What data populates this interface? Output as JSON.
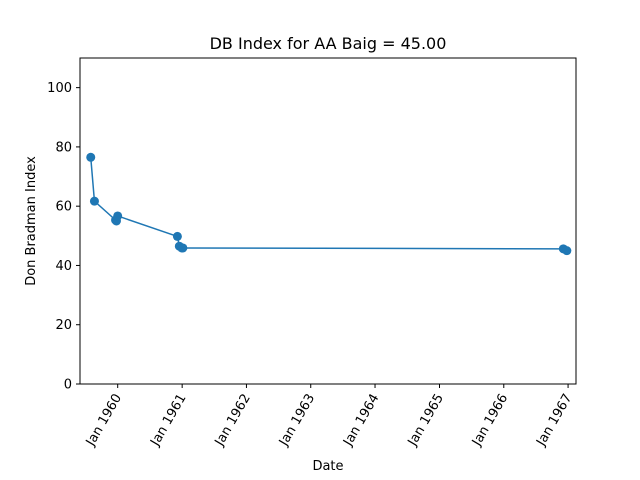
{
  "chart_data": {
    "type": "line",
    "title": "DB Index for AA Baig = 45.00",
    "xlabel": "Date",
    "ylabel": "Don Bradman Index",
    "xlim": [
      "1959-06-01",
      "1967-02-15"
    ],
    "ylim": [
      0,
      110
    ],
    "x_ticks": [
      {
        "date": "1960-01-01",
        "label": "Jan 1960"
      },
      {
        "date": "1961-01-01",
        "label": "Jan 1961"
      },
      {
        "date": "1962-01-01",
        "label": "Jan 1962"
      },
      {
        "date": "1963-01-01",
        "label": "Jan 1963"
      },
      {
        "date": "1964-01-01",
        "label": "Jan 1964"
      },
      {
        "date": "1965-01-01",
        "label": "Jan 1965"
      },
      {
        "date": "1966-01-01",
        "label": "Jan 1966"
      },
      {
        "date": "1967-01-01",
        "label": "Jan 1967"
      }
    ],
    "y_ticks": [
      0,
      20,
      40,
      60,
      80,
      100
    ],
    "grid": false,
    "legend": "none",
    "series": [
      {
        "color": "#1f77b4",
        "marker": "circle",
        "points": [
          {
            "x": "1959-08-01",
            "y": 76.5
          },
          {
            "x": "1959-08-22",
            "y": 61.7
          },
          {
            "x": "1959-12-20",
            "y": 55.3
          },
          {
            "x": "1959-12-25",
            "y": 55.0
          },
          {
            "x": "1960-01-01",
            "y": 56.7
          },
          {
            "x": "1960-12-05",
            "y": 49.8
          },
          {
            "x": "1960-12-16",
            "y": 46.5
          },
          {
            "x": "1960-12-30",
            "y": 45.9
          },
          {
            "x": "1961-01-05",
            "y": 45.9
          },
          {
            "x": "1966-12-05",
            "y": 45.6
          },
          {
            "x": "1966-12-25",
            "y": 45.0
          }
        ]
      }
    ]
  }
}
